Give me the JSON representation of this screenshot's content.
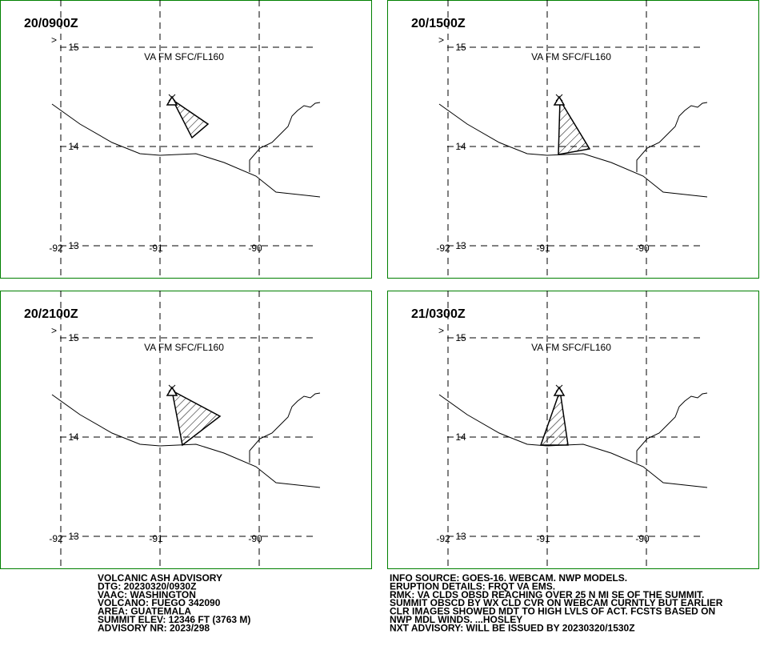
{
  "panels": [
    {
      "time": "20/0900Z",
      "layer": "VA FM SFC/FL160",
      "marker": ">",
      "lat_labels": [
        "15",
        "14",
        "13"
      ],
      "lon_labels": [
        "-92",
        "-91",
        "-90"
      ]
    },
    {
      "time": "20/1500Z",
      "layer": "VA FM SFC/FL160",
      "marker": ">",
      "lat_labels": [
        "15",
        "14",
        "13"
      ],
      "lon_labels": [
        "-92",
        "-91",
        "-90"
      ]
    },
    {
      "time": "20/2100Z",
      "layer": "VA FM SFC/FL160",
      "marker": ">",
      "lat_labels": [
        "15",
        "14",
        "13"
      ],
      "lon_labels": [
        "-92",
        "-91",
        "-90"
      ]
    },
    {
      "time": "21/0300Z",
      "layer": "VA FM SFC/FL160",
      "marker": ">",
      "lat_labels": [
        "15",
        "14",
        "13"
      ],
      "lon_labels": [
        "-92",
        "-91",
        "-90"
      ]
    }
  ],
  "advisory": {
    "left": [
      "VOLCANIC ASH ADVISORY",
      "DTG: 20230320/0930Z",
      "VAAC: WASHINGTON",
      "VOLCANO: FUEGO 342090",
      "AREA: GUATEMALA",
      "SUMMIT ELEV: 12346 FT (3763 M)",
      "ADVISORY NR: 2023/298"
    ],
    "right": [
      "INFO SOURCE: GOES-16. WEBCAM. NWP MODELS.",
      "ERUPTION DETAILS: FRQT VA EMS.",
      "RMK: VA CLDS OBSD REACHING OVER 25 N MI SE OF THE SUMMIT.",
      "SUMMIT OBSCD BY WX CLD CVR ON WEBCAM CURNTLY BUT EARLIER",
      "CLR IMAGES SHOWED MDT TO HIGH LVLS OF ACT. FCSTS BASED ON",
      "NWP MDL WINDS. ...HOSLEY",
      "NXT ADVISORY: WILL BE ISSUED BY 20230320/1530Z"
    ]
  }
}
